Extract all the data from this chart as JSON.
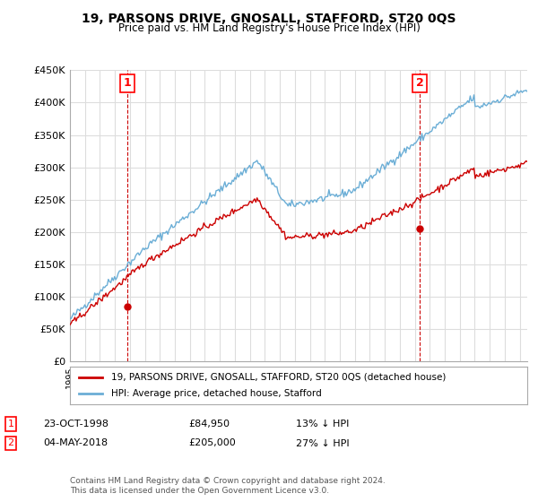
{
  "title": "19, PARSONS DRIVE, GNOSALL, STAFFORD, ST20 0QS",
  "subtitle": "Price paid vs. HM Land Registry's House Price Index (HPI)",
  "ylabel_ticks": [
    "£0",
    "£50K",
    "£100K",
    "£150K",
    "£200K",
    "£250K",
    "£300K",
    "£350K",
    "£400K",
    "£450K"
  ],
  "ytick_values": [
    0,
    50000,
    100000,
    150000,
    200000,
    250000,
    300000,
    350000,
    400000,
    450000
  ],
  "ylim": [
    0,
    450000
  ],
  "sale1_date": 1998.81,
  "sale1_price": 84950,
  "sale2_date": 2018.34,
  "sale2_price": 205000,
  "sale1_label": "1",
  "sale2_label": "2",
  "hpi_color": "#6baed6",
  "price_color": "#cc0000",
  "vline_color": "#cc0000",
  "legend_label1": "19, PARSONS DRIVE, GNOSALL, STAFFORD, ST20 0QS (detached house)",
  "legend_label2": "HPI: Average price, detached house, Stafford",
  "table_row1": [
    "1",
    "23-OCT-1998",
    "£84,950",
    "13% ↓ HPI"
  ],
  "table_row2": [
    "2",
    "04-MAY-2018",
    "£205,000",
    "27% ↓ HPI"
  ],
  "footer": "Contains HM Land Registry data © Crown copyright and database right 2024.\nThis data is licensed under the Open Government Licence v3.0.",
  "background_color": "#ffffff",
  "grid_color": "#dddddd",
  "xmin": 1995,
  "xmax": 2025.5
}
